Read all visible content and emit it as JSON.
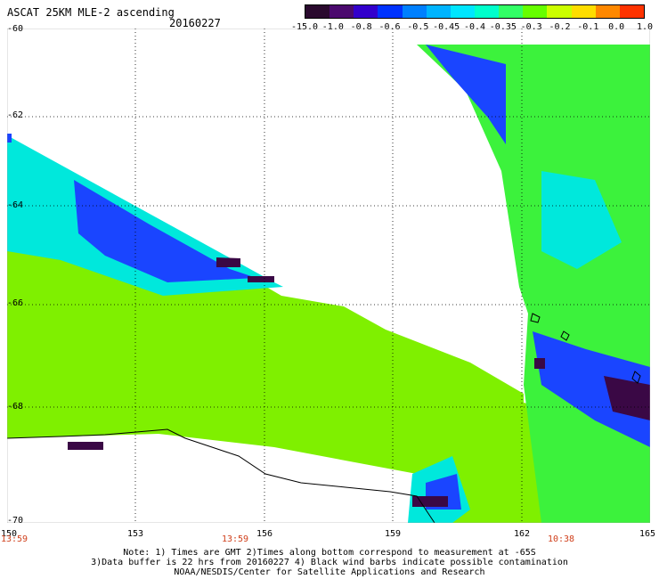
{
  "title": "ASCAT 25KM MLE-2 ascending",
  "date": "20160227",
  "colorbar": {
    "labels": [
      "-15.0",
      "-1.0",
      "-0.8",
      "-0.6",
      "-0.5",
      "-0.45",
      "-0.4",
      "-0.35",
      "-0.3",
      "-0.2",
      "-0.1",
      "0.0",
      "1.0"
    ],
    "colors": [
      "#2a0a2e",
      "#4b0a6e",
      "#3300cc",
      "#0033ff",
      "#0080ff",
      "#00b4ff",
      "#00e6ff",
      "#00ffcc",
      "#33ff66",
      "#66ff00",
      "#ccff00",
      "#ffdd00",
      "#ff8800",
      "#ff3300"
    ]
  },
  "lat_labels": [
    "-60",
    "-62",
    "-64",
    "-66",
    "-68",
    "-70"
  ],
  "lon_labels": [
    "150",
    "153",
    "156",
    "159",
    "162",
    "165"
  ],
  "time_labels": [
    "13:59",
    "13:59",
    "10:38"
  ],
  "notes": [
    "Note: 1) Times are GMT 2)Times along bottom correspond to measurement at -65S",
    "3)Data buffer is 22 hrs from 20160227 4) Black wind barbs indicate possible contamination",
    "NOAA/NESDIS/Center for Satellite Applications and Research"
  ]
}
